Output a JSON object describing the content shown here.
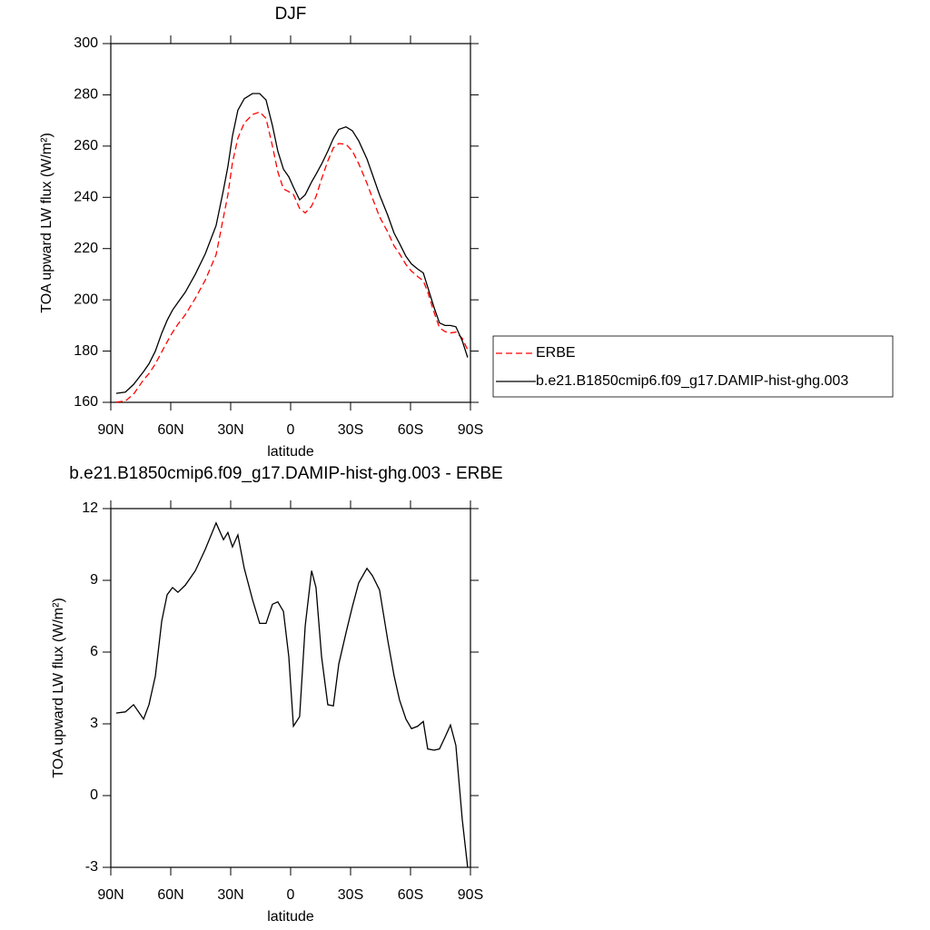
{
  "chart_data": [
    {
      "type": "line",
      "title": "DJF",
      "xlabel": "latitude",
      "ylabel": "TOA upward LW flux (W/m²)",
      "x": [
        87.3,
        82.7,
        78.6,
        73.6,
        70.9,
        67.7,
        64.5,
        61.8,
        59.1,
        56.4,
        52.7,
        47.7,
        42.7,
        37.3,
        33.6,
        31.4,
        29.1,
        26.4,
        23.2,
        19.1,
        15.5,
        12.3,
        9.1,
        6.4,
        3.6,
        0.9,
        -1.4,
        -4.5,
        -7.3,
        -10.5,
        -12.7,
        -15.5,
        -18.6,
        -21.4,
        -24.1,
        -27.7,
        -30.9,
        -34.1,
        -38.2,
        -40.9,
        -44.5,
        -48.6,
        -51.8,
        -54.5,
        -57.7,
        -60.5,
        -63.6,
        -66.4,
        -68.6,
        -71.8,
        -74.5,
        -77.3,
        -80,
        -82.7,
        -85.9,
        -88.6
      ],
      "xlim": [
        90,
        -90
      ],
      "xticks": [
        {
          "value": 90,
          "label": "90N"
        },
        {
          "value": 60,
          "label": "60N"
        },
        {
          "value": 30,
          "label": "30N"
        },
        0,
        {
          "value": -30,
          "label": "30S"
        },
        {
          "value": -60,
          "label": "60S"
        },
        {
          "value": -90,
          "label": "90S"
        }
      ],
      "ylim": [
        160,
        300
      ],
      "yticks": [
        160,
        180,
        200,
        220,
        240,
        260,
        280,
        300
      ],
      "legend": "right",
      "series": [
        {
          "name": "ERBE",
          "color": "#ff0000",
          "dash": "dashed",
          "values": [
            160.1,
            160.5,
            163.2,
            168.8,
            171.2,
            175,
            179.7,
            183.6,
            187.3,
            190.5,
            194.2,
            200.6,
            207.7,
            217.6,
            232.3,
            241,
            253.6,
            263.1,
            269,
            272.3,
            273.3,
            270.8,
            260,
            249.9,
            243.3,
            242.2,
            241.1,
            235.7,
            233.9,
            236.6,
            240.3,
            247.2,
            254.2,
            259.3,
            261,
            260.7,
            258.1,
            253.1,
            245.5,
            239.8,
            232.4,
            226.5,
            221,
            218,
            213.8,
            211.2,
            209.1,
            207.4,
            203.1,
            195.1,
            189.1,
            187.6,
            187.1,
            187.4,
            185,
            180.5
          ]
        },
        {
          "name": "b.e21.B1850cmip6.f09_g17.DAMIP-hist-ghg.003",
          "color": "#000000",
          "values": [
            163.5,
            164,
            167,
            172,
            175,
            180,
            187,
            192,
            196,
            199,
            203,
            210,
            218,
            229,
            243,
            252,
            264,
            274,
            278.5,
            280.5,
            280.5,
            278,
            268,
            258,
            251,
            248,
            244,
            239,
            241,
            246,
            249,
            253,
            258,
            263,
            266.5,
            267.5,
            266,
            262,
            255,
            249,
            241,
            233,
            226,
            222,
            217,
            214,
            212,
            210.5,
            205,
            197,
            191,
            190,
            190,
            189.5,
            184,
            177.5
          ]
        }
      ]
    },
    {
      "type": "line",
      "title": "b.e21.B1850cmip6.f09_g17.DAMIP-hist-ghg.003 - ERBE",
      "xlabel": "latitude",
      "ylabel": "TOA upward LW flux (W/m²)",
      "x": [
        87.3,
        82.7,
        78.6,
        73.6,
        70.9,
        67.7,
        64.5,
        61.8,
        59.1,
        56.4,
        52.7,
        47.7,
        42.7,
        37.3,
        33.6,
        31.4,
        29.1,
        26.4,
        23.2,
        19.1,
        15.5,
        12.3,
        9.1,
        6.4,
        3.6,
        0.9,
        -1.4,
        -4.5,
        -7.3,
        -10.5,
        -12.7,
        -15.5,
        -18.6,
        -21.4,
        -24.1,
        -27.7,
        -30.9,
        -34.1,
        -38.2,
        -40.9,
        -44.5,
        -48.6,
        -51.8,
        -54.5,
        -57.7,
        -60.5,
        -63.6,
        -66.4,
        -68.6,
        -71.8,
        -74.5,
        -77.3,
        -80,
        -82.7,
        -85.9,
        -88.6
      ],
      "xlim": [
        90,
        -90
      ],
      "xticks": [
        {
          "value": 90,
          "label": "90N"
        },
        {
          "value": 60,
          "label": "60N"
        },
        {
          "value": 30,
          "label": "30N"
        },
        0,
        {
          "value": -30,
          "label": "30S"
        },
        {
          "value": -60,
          "label": "60S"
        },
        {
          "value": -90,
          "label": "90S"
        }
      ],
      "ylim": [
        -3,
        12
      ],
      "yticks": [
        -3,
        0,
        3,
        6,
        9,
        12
      ],
      "color": "#000000",
      "values": [
        3.45,
        3.5,
        3.8,
        3.2,
        3.8,
        5,
        7.3,
        8.4,
        8.7,
        8.5,
        8.8,
        9.4,
        10.3,
        11.4,
        10.7,
        11,
        10.4,
        10.9,
        9.5,
        8.2,
        7.2,
        7.2,
        8,
        8.1,
        7.7,
        5.8,
        2.9,
        3.3,
        7.1,
        9.4,
        8.7,
        5.8,
        3.8,
        3.75,
        5.5,
        6.8,
        7.9,
        8.9,
        9.5,
        9.2,
        8.6,
        6.5,
        5,
        4,
        3.2,
        2.8,
        2.9,
        3.1,
        1.95,
        1.9,
        1.95,
        2.45,
        2.95,
        2.1,
        -1,
        -3
      ]
    }
  ]
}
